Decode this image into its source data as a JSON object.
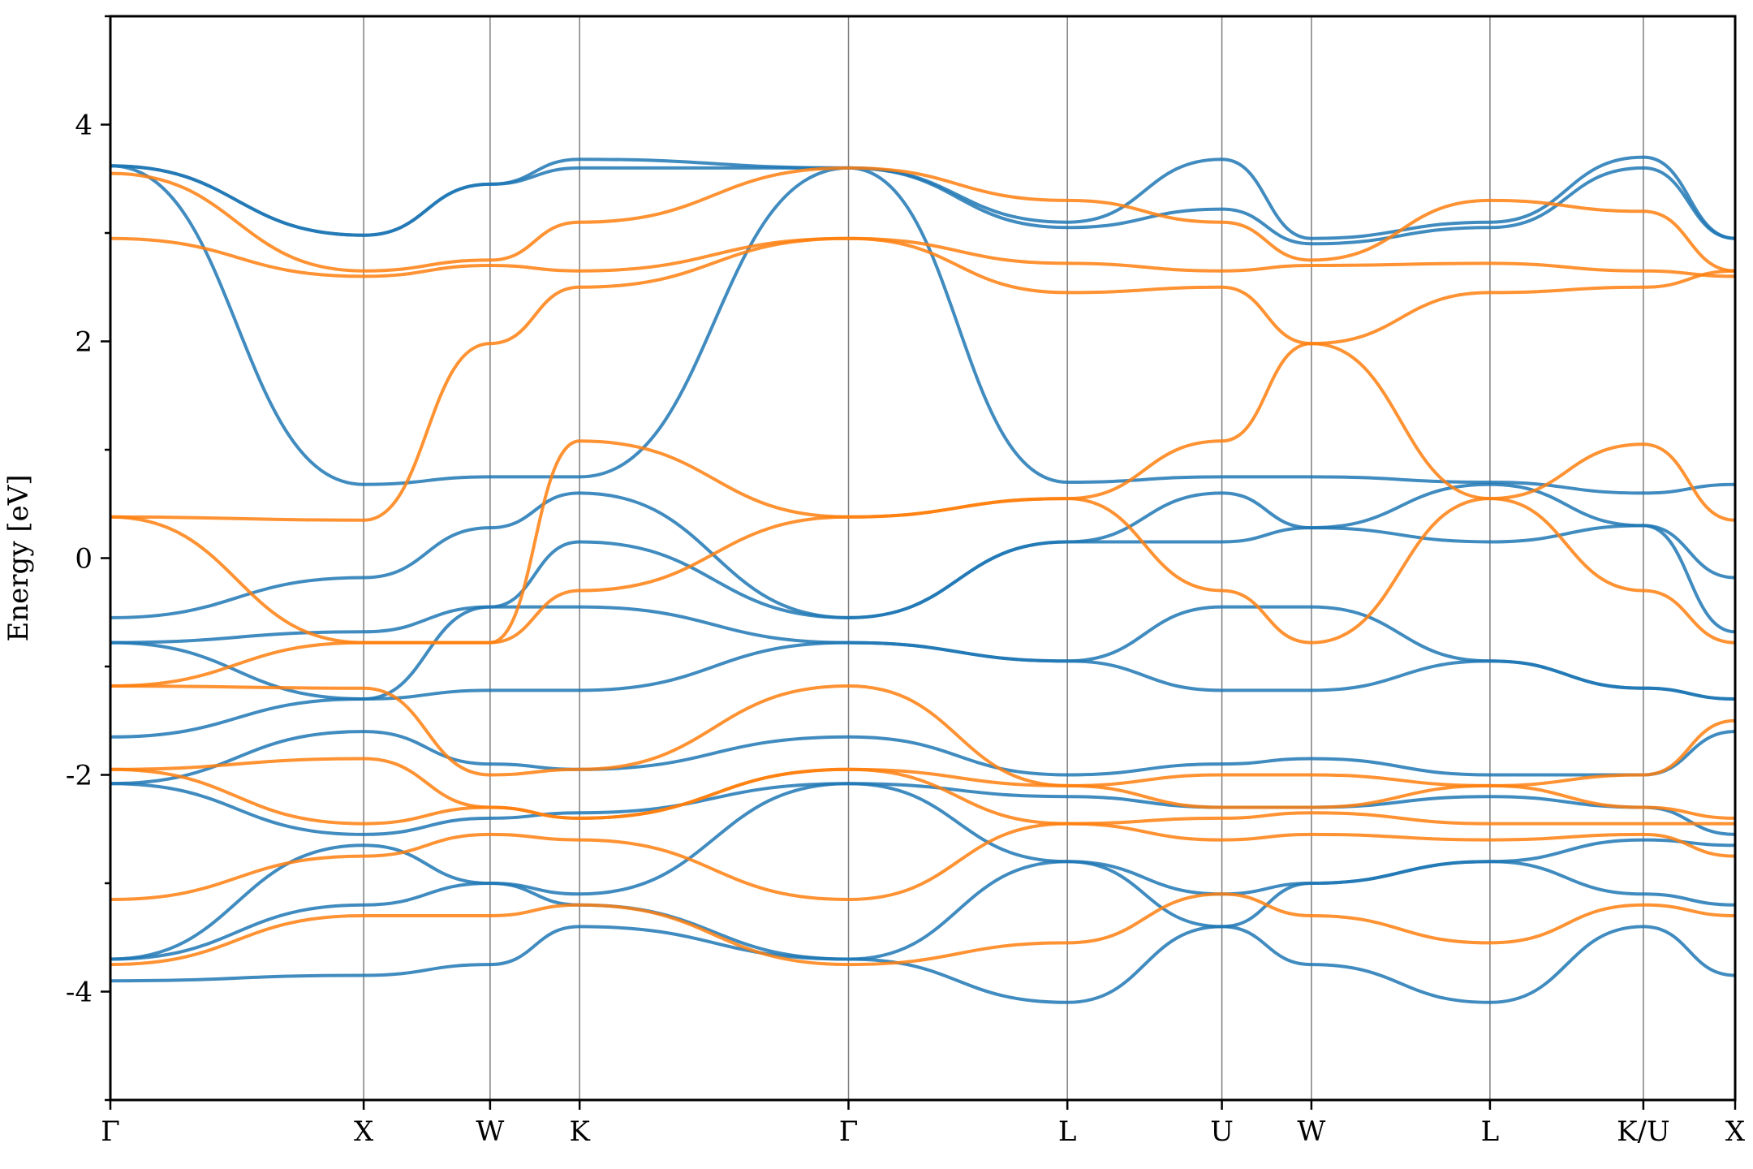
{
  "chart_data": {
    "type": "line",
    "title": "",
    "xlabel": "",
    "ylabel": "Energy [eV]",
    "ylim": [
      -5,
      5
    ],
    "xlim": [
      0,
      1
    ],
    "yticks": [
      -4,
      -2,
      0,
      2,
      4
    ],
    "grid": "vertical lines at high-symmetry points",
    "legend": "none",
    "colors": {
      "blue": "#1f77b4",
      "orange": "#ff7f0e"
    },
    "kpoints": [
      {
        "label": "Γ",
        "x": 0.0
      },
      {
        "label": "X",
        "x": 0.1559
      },
      {
        "label": "W",
        "x": 0.2337
      },
      {
        "label": "K",
        "x": 0.2888
      },
      {
        "label": "Γ",
        "x": 0.4543
      },
      {
        "label": "L",
        "x": 0.589
      },
      {
        "label": "U",
        "x": 0.6841
      },
      {
        "label": "W",
        "x": 0.7392
      },
      {
        "label": "L",
        "x": 0.8491
      },
      {
        "label": "K/U",
        "x": 0.9435
      },
      {
        "label": "X",
        "x": 1.0
      }
    ],
    "series": [
      {
        "color": "blue",
        "nodes": [
          3.62,
          2.98,
          3.45,
          3.68,
          3.6,
          3.1,
          3.68,
          2.95,
          3.1,
          3.7,
          2.95
        ]
      },
      {
        "color": "blue",
        "nodes": [
          3.62,
          2.98,
          3.45,
          3.6,
          3.6,
          3.05,
          3.22,
          2.9,
          3.05,
          3.6,
          2.95
        ]
      },
      {
        "color": "blue",
        "nodes": [
          3.62,
          0.68,
          0.75,
          0.75,
          3.6,
          0.7,
          0.75,
          0.75,
          0.7,
          0.6,
          0.68
        ]
      },
      {
        "color": "blue",
        "nodes": [
          -0.55,
          -0.18,
          0.28,
          0.6,
          -0.55,
          0.15,
          0.6,
          0.28,
          0.68,
          0.3,
          -0.18
        ]
      },
      {
        "color": "blue",
        "nodes": [
          -0.78,
          -0.68,
          -0.45,
          0.15,
          -0.55,
          0.15,
          0.15,
          0.28,
          0.15,
          0.3,
          -0.68
        ]
      },
      {
        "color": "blue",
        "nodes": [
          -0.78,
          -1.3,
          -0.45,
          -0.45,
          -0.78,
          -0.95,
          -0.45,
          -0.45,
          -0.95,
          -1.2,
          -1.3
        ]
      },
      {
        "color": "blue",
        "nodes": [
          -1.65,
          -1.3,
          -1.22,
          -1.22,
          -0.78,
          -0.95,
          -1.22,
          -1.22,
          -0.95,
          -1.2,
          -1.3
        ]
      },
      {
        "color": "blue",
        "nodes": [
          -2.08,
          -1.6,
          -1.9,
          -1.95,
          -1.65,
          -2.0,
          -1.9,
          -1.85,
          -2.0,
          -2.0,
          -1.6
        ]
      },
      {
        "color": "blue",
        "nodes": [
          -2.08,
          -2.55,
          -2.4,
          -2.35,
          -2.08,
          -2.2,
          -2.3,
          -2.3,
          -2.2,
          -2.3,
          -2.55
        ]
      },
      {
        "color": "blue",
        "nodes": [
          -3.7,
          -2.65,
          -3.0,
          -3.1,
          -2.08,
          -2.8,
          -3.1,
          -3.0,
          -2.8,
          -2.6,
          -2.65
        ]
      },
      {
        "color": "blue",
        "nodes": [
          -3.7,
          -3.2,
          -3.0,
          -3.2,
          -3.7,
          -2.8,
          -3.4,
          -3.0,
          -2.8,
          -3.1,
          -3.2
        ]
      },
      {
        "color": "blue",
        "nodes": [
          -3.9,
          -3.85,
          -3.75,
          -3.4,
          -3.7,
          -4.1,
          -3.4,
          -3.75,
          -4.1,
          -3.4,
          -3.85
        ]
      },
      {
        "color": "orange",
        "nodes": [
          3.55,
          2.65,
          2.75,
          3.1,
          3.6,
          3.3,
          3.1,
          2.75,
          3.3,
          3.2,
          2.65
        ]
      },
      {
        "color": "orange",
        "nodes": [
          2.95,
          2.6,
          2.7,
          2.65,
          2.95,
          2.72,
          2.65,
          2.7,
          2.72,
          2.65,
          2.6
        ]
      },
      {
        "color": "orange",
        "nodes": [
          0.38,
          0.35,
          1.98,
          2.5,
          2.95,
          2.45,
          2.5,
          1.98,
          2.45,
          2.5,
          2.65
        ]
      },
      {
        "color": "orange",
        "nodes": [
          0.38,
          -0.78,
          -0.78,
          1.08,
          0.38,
          0.55,
          1.08,
          1.98,
          0.55,
          1.05,
          0.35
        ]
      },
      {
        "color": "orange",
        "nodes": [
          -1.18,
          -0.78,
          -0.78,
          -0.3,
          0.38,
          0.55,
          -0.3,
          -0.78,
          0.55,
          -0.3,
          -0.78
        ]
      },
      {
        "color": "orange",
        "nodes": [
          -1.18,
          -1.2,
          -2.0,
          -1.95,
          -1.18,
          -2.1,
          -2.0,
          -2.0,
          -2.1,
          -2.0,
          -1.5
        ]
      },
      {
        "color": "orange",
        "nodes": [
          -1.95,
          -1.85,
          -2.3,
          -2.4,
          -1.95,
          -2.1,
          -2.3,
          -2.3,
          -2.1,
          -2.3,
          -2.4
        ]
      },
      {
        "color": "orange",
        "nodes": [
          -1.95,
          -2.45,
          -2.3,
          -2.4,
          -1.95,
          -2.45,
          -2.4,
          -2.35,
          -2.45,
          -2.45,
          -2.45
        ]
      },
      {
        "color": "orange",
        "nodes": [
          -3.15,
          -2.75,
          -2.55,
          -2.6,
          -3.15,
          -2.45,
          -2.6,
          -2.55,
          -2.6,
          -2.55,
          -2.75
        ]
      },
      {
        "color": "orange",
        "nodes": [
          -3.75,
          -3.3,
          -3.3,
          -3.2,
          -3.75,
          -3.55,
          -3.1,
          -3.3,
          -3.55,
          -3.2,
          -3.3
        ]
      }
    ]
  }
}
